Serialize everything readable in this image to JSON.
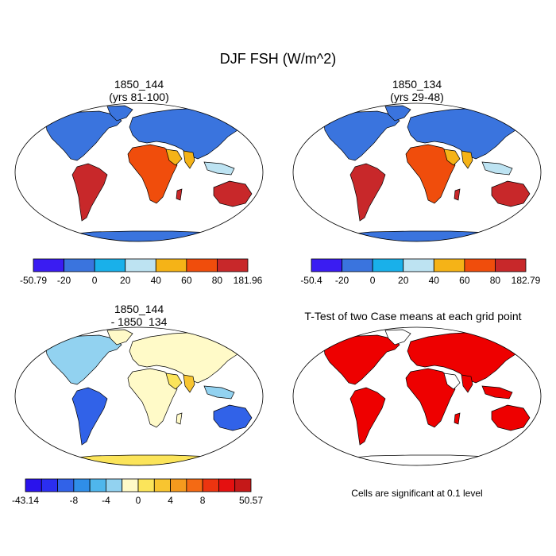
{
  "main_title": "DJF FSH (W/m^2)",
  "panels": [
    {
      "id": "top-left",
      "title_line1": "1850_144",
      "title_line2": "(yrs 81-100)",
      "colorbar": {
        "colors": [
          "#3a1cf2",
          "#3a74de",
          "#19b0ea",
          "#bde3f2",
          "#f5b317",
          "#f04d0c",
          "#c8282a"
        ],
        "labels": [
          "-50.79",
          "-20",
          "0",
          "20",
          "40",
          "60",
          "80",
          "181.96"
        ]
      }
    },
    {
      "id": "top-right",
      "title_line1": "1850_134",
      "title_line2": "(yrs 29-48)",
      "colorbar": {
        "colors": [
          "#3a1cf2",
          "#3a74de",
          "#19b0ea",
          "#bde3f2",
          "#f5b317",
          "#f04d0c",
          "#c8282a"
        ],
        "labels": [
          "-50.4",
          "-20",
          "0",
          "20",
          "40",
          "60",
          "80",
          "182.79"
        ]
      }
    },
    {
      "id": "bottom-left",
      "title_line1": "1850_144",
      "title_line2": "- 1850_134",
      "colorbar": {
        "colors": [
          "#2a13ec",
          "#2b2ef0",
          "#3162e8",
          "#2f8ee9",
          "#4fb6ec",
          "#92d2f0",
          "#fffac8",
          "#fbe45a",
          "#f8c530",
          "#f59a1e",
          "#f46a14",
          "#ec3410",
          "#e41010",
          "#c51818"
        ],
        "labels": [
          "-43.14",
          "",
          "",
          "-8",
          "",
          "-4",
          "",
          "0",
          "",
          "4",
          "",
          "8",
          "",
          "",
          "50.57"
        ]
      }
    },
    {
      "id": "bottom-right",
      "title_line1": "T-Test of two Case means at each grid point",
      "note": "Cells are significant at 0.1 level"
    }
  ],
  "colors": {
    "ocean": "#ffffff",
    "land_outline": "#000000",
    "significant": "#ee0000"
  }
}
